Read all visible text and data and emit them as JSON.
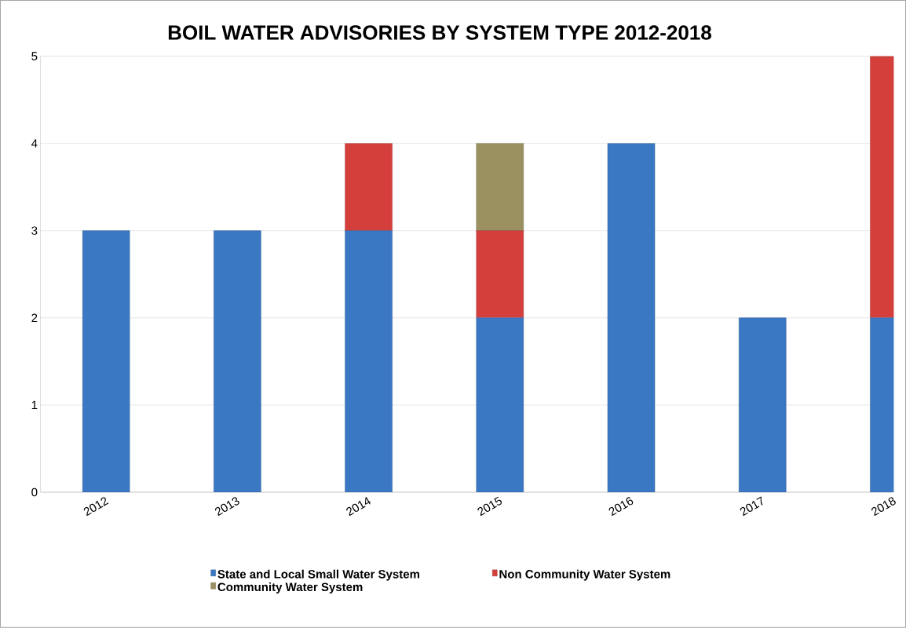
{
  "chart_data": {
    "type": "bar",
    "title": "BOIL WATER ADVISORIES BY SYSTEM TYPE 2012-2018",
    "categories": [
      "2012",
      "2013",
      "2014",
      "2015",
      "2016",
      "2017",
      "2018"
    ],
    "stacked": true,
    "series": [
      {
        "name": "State and Local Small Water System",
        "color": "#3b78c4",
        "values": [
          3,
          3,
          3,
          2,
          4,
          2,
          2
        ]
      },
      {
        "name": "Non Community Water System",
        "color": "#d43f3c",
        "values": [
          0,
          0,
          1,
          1,
          0,
          0,
          3
        ]
      },
      {
        "name": "Community Water System",
        "color": "#9a9060",
        "values": [
          0,
          0,
          0,
          1,
          0,
          0,
          0
        ]
      }
    ],
    "ylim": [
      0,
      5
    ],
    "yticks": [
      0,
      1,
      2,
      3,
      4,
      5
    ],
    "grid": "y",
    "legend": "bottom"
  }
}
